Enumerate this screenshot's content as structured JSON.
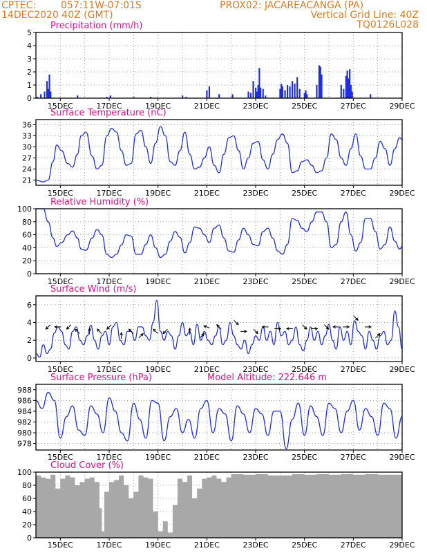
{
  "header": {
    "source": "CPTEC:",
    "coords": "057:11W-07:01S",
    "station": "PROX02: JACAREACANGA (PA)",
    "date": "14DEC2020 40Z (GMT)",
    "grid_note": "Vertical Grid Line: 40Z",
    "model_code": "TQ0126L028"
  },
  "colors": {
    "header": "#e07b20",
    "title": "#e0108a",
    "series": "#1f2fe0",
    "cloud": "#a8a8a8"
  },
  "chart_data": [
    {
      "type": "bar",
      "title": "Precipitation (mm/h)",
      "xticks": [
        "15DEC",
        "17DEC",
        "19DEC",
        "21DEC",
        "23DEC",
        "25DEC",
        "27DEC",
        "29DEC"
      ],
      "yticks": [
        "0",
        "1",
        "2",
        "3",
        "4",
        "5"
      ],
      "ylim": [
        0,
        5
      ],
      "xlim": [
        14.0,
        29.0
      ],
      "grid": true,
      "x": [
        14.05,
        14.2,
        14.35,
        14.45,
        14.5,
        14.55,
        14.6,
        15.7,
        16.9,
        17.05,
        18.0,
        18.7,
        20.0,
        20.15,
        21.0,
        21.1,
        21.5,
        22.05,
        22.7,
        22.8,
        22.9,
        23.0,
        23.05,
        23.1,
        23.15,
        23.2,
        23.3,
        23.4,
        24.0,
        24.05,
        24.1,
        24.2,
        24.3,
        24.4,
        24.5,
        24.6,
        24.7,
        24.8,
        25.0,
        25.05,
        25.1,
        25.5,
        25.6,
        25.65,
        25.7,
        26.5,
        26.6,
        26.7,
        26.75,
        26.8,
        26.85,
        26.9,
        26.95,
        27.7
      ],
      "values": [
        0.1,
        0.3,
        0.5,
        1.3,
        0.7,
        1.8,
        0.5,
        0.2,
        0.1,
        0.2,
        0.1,
        0.1,
        0.2,
        0.1,
        0.6,
        0.9,
        0.3,
        0.3,
        0.5,
        0.4,
        1.3,
        0.8,
        0.5,
        1.0,
        2.3,
        0.8,
        0.7,
        0.2,
        0.7,
        1.1,
        0.9,
        0.6,
        1.0,
        0.9,
        1.3,
        1.1,
        1.6,
        0.7,
        0.4,
        0.6,
        0.3,
        1.0,
        2.5,
        2.4,
        1.8,
        1.0,
        0.7,
        1.7,
        2.1,
        1.5,
        2.2,
        1.0,
        0.5,
        0.3
      ]
    },
    {
      "type": "line",
      "title": "Surface Temperature (nC)",
      "xticks": [
        "15DEC",
        "17DEC",
        "19DEC",
        "21DEC",
        "23DEC",
        "25DEC",
        "27DEC",
        "29DEC"
      ],
      "yticks": [
        "21",
        "24",
        "27",
        "30",
        "33",
        "36"
      ],
      "ylim": [
        19.6,
        37.4
      ],
      "xlim": [
        14.0,
        29.0
      ],
      "grid": true,
      "x": [
        14.0,
        14.3,
        14.5,
        14.7,
        14.85,
        15.05,
        15.3,
        15.5,
        15.7,
        15.85,
        16.05,
        16.3,
        16.5,
        16.7,
        16.9,
        17.1,
        17.3,
        17.5,
        17.7,
        17.9,
        18.1,
        18.3,
        18.5,
        18.7,
        18.9,
        19.1,
        19.3,
        19.5,
        19.7,
        19.9,
        20.1,
        20.3,
        20.5,
        20.7,
        20.9,
        21.1,
        21.3,
        21.5,
        21.7,
        21.9,
        22.1,
        22.3,
        22.5,
        22.7,
        22.9,
        23.1,
        23.3,
        23.5,
        23.7,
        23.9,
        24.1,
        24.3,
        24.5,
        24.7,
        24.9,
        25.1,
        25.3,
        25.5,
        25.7,
        25.9,
        26.1,
        26.3,
        26.5,
        26.7,
        26.9,
        27.1,
        27.3,
        27.5,
        27.7,
        27.9,
        28.1,
        28.3,
        28.5,
        28.7,
        28.9,
        29.0
      ],
      "values": [
        21.0,
        20.5,
        21.0,
        26.0,
        30.5,
        29.0,
        25.5,
        24.5,
        28.0,
        33.0,
        34.0,
        27.5,
        24.0,
        25.0,
        33.0,
        35.0,
        34.0,
        29.0,
        25.0,
        25.5,
        33.5,
        34.5,
        30.0,
        25.5,
        31.0,
        35.5,
        33.0,
        26.0,
        25.0,
        29.0,
        34.0,
        28.0,
        24.0,
        24.5,
        27.0,
        30.0,
        25.0,
        23.0,
        28.0,
        32.5,
        33.0,
        29.0,
        24.0,
        27.0,
        31.0,
        31.5,
        26.5,
        24.0,
        28.0,
        32.0,
        33.5,
        31.0,
        23.0,
        23.5,
        26.0,
        26.5,
        25.0,
        23.0,
        23.5,
        27.0,
        33.5,
        32.0,
        27.0,
        25.0,
        29.5,
        33.5,
        27.5,
        24.0,
        24.0,
        27.0,
        31.5,
        29.5,
        25.0,
        29.5,
        32.5,
        32.0
      ]
    },
    {
      "type": "line",
      "title": "Relative Humidity (%)",
      "xticks": [
        "15DEC",
        "17DEC",
        "19DEC",
        "21DEC",
        "23DEC",
        "25DEC",
        "27DEC",
        "29DEC"
      ],
      "yticks": [
        "0",
        "20",
        "40",
        "60",
        "80",
        "100"
      ],
      "ylim": [
        0,
        100
      ],
      "xlim": [
        14.0,
        29.0
      ],
      "grid": true,
      "x": [
        14.0,
        14.3,
        14.5,
        14.7,
        14.85,
        15.05,
        15.3,
        15.5,
        15.7,
        15.85,
        16.05,
        16.3,
        16.5,
        16.7,
        16.9,
        17.1,
        17.3,
        17.5,
        17.7,
        17.9,
        18.1,
        18.3,
        18.5,
        18.7,
        18.9,
        19.1,
        19.3,
        19.5,
        19.7,
        19.9,
        20.1,
        20.3,
        20.5,
        20.7,
        20.9,
        21.1,
        21.3,
        21.5,
        21.7,
        21.9,
        22.1,
        22.3,
        22.5,
        22.7,
        22.9,
        23.1,
        23.3,
        23.5,
        23.7,
        23.9,
        24.1,
        24.3,
        24.5,
        24.7,
        24.9,
        25.1,
        25.3,
        25.5,
        25.7,
        25.9,
        26.1,
        26.3,
        26.5,
        26.7,
        26.9,
        27.1,
        27.3,
        27.5,
        27.7,
        27.9,
        28.1,
        28.3,
        28.5,
        28.7,
        28.9,
        29.0
      ],
      "values": [
        100,
        100,
        80,
        55,
        42,
        48,
        60,
        66,
        55,
        38,
        36,
        55,
        68,
        60,
        30,
        25,
        30,
        44,
        60,
        58,
        30,
        30,
        45,
        60,
        40,
        25,
        30,
        50,
        65,
        56,
        32,
        48,
        72,
        70,
        60,
        48,
        70,
        75,
        55,
        35,
        33,
        52,
        70,
        60,
        45,
        43,
        65,
        70,
        55,
        35,
        30,
        45,
        85,
        82,
        70,
        65,
        80,
        95,
        95,
        80,
        40,
        45,
        80,
        95,
        60,
        35,
        48,
        85,
        85,
        65,
        38,
        45,
        72,
        50,
        38,
        42
      ]
    },
    {
      "type": "line",
      "title": "Surface Wind (m/s)",
      "xticks": [
        "15DEC",
        "17DEC",
        "19DEC",
        "21DEC",
        "23DEC",
        "25DEC",
        "27DEC",
        "29DEC"
      ],
      "yticks": [
        "0",
        "2",
        "4",
        "6"
      ],
      "ylim": [
        -0.4,
        7.0
      ],
      "xlim": [
        14.0,
        29.0
      ],
      "grid": true,
      "x": [
        14.0,
        14.15,
        14.3,
        14.45,
        14.6,
        14.75,
        14.9,
        15.05,
        15.2,
        15.35,
        15.5,
        15.65,
        15.8,
        15.95,
        16.1,
        16.25,
        16.4,
        16.55,
        16.7,
        16.85,
        17.0,
        17.15,
        17.3,
        17.45,
        17.6,
        17.75,
        17.9,
        18.05,
        18.2,
        18.35,
        18.5,
        18.65,
        18.8,
        18.95,
        19.1,
        19.25,
        19.4,
        19.55,
        19.7,
        19.85,
        20.0,
        20.15,
        20.3,
        20.45,
        20.6,
        20.75,
        20.9,
        21.05,
        21.2,
        21.35,
        21.5,
        21.65,
        21.8,
        21.95,
        22.1,
        22.25,
        22.4,
        22.55,
        22.7,
        22.85,
        23.0,
        23.15,
        23.3,
        23.45,
        23.6,
        23.75,
        23.9,
        24.05,
        24.2,
        24.35,
        24.5,
        24.65,
        24.8,
        24.95,
        25.1,
        25.25,
        25.4,
        25.55,
        25.7,
        25.85,
        26.0,
        26.15,
        26.3,
        26.45,
        26.6,
        26.75,
        26.9,
        27.05,
        27.2,
        27.35,
        27.5,
        27.65,
        27.8,
        27.95,
        28.1,
        28.25,
        28.4,
        28.55,
        28.7,
        28.85,
        29.0
      ],
      "values": [
        0.5,
        0.1,
        1.5,
        0.5,
        1.0,
        2.8,
        3.5,
        3.0,
        1.5,
        1.0,
        3.0,
        3.5,
        2.0,
        1.5,
        2.5,
        3.7,
        2.0,
        1.0,
        2.5,
        3.0,
        1.5,
        3.5,
        4.0,
        2.0,
        1.5,
        3.0,
        3.0,
        2.0,
        3.5,
        3.5,
        2.5,
        2.0,
        4.0,
        6.5,
        3.0,
        2.0,
        3.0,
        2.5,
        1.0,
        2.5,
        4.0,
        2.5,
        3.0,
        1.5,
        3.8,
        2.0,
        3.0,
        2.0,
        1.5,
        2.5,
        3.5,
        1.5,
        2.0,
        4.0,
        2.5,
        1.5,
        1.0,
        2.0,
        0.5,
        1.5,
        2.5,
        2.0,
        3.5,
        2.0,
        3.0,
        1.5,
        4.0,
        2.5,
        3.0,
        1.5,
        2.0,
        3.5,
        1.5,
        0.8,
        2.0,
        3.5,
        2.0,
        3.0,
        1.5,
        2.5,
        3.8,
        2.0,
        1.0,
        3.5,
        2.0,
        3.0,
        1.5,
        4.2,
        3.0,
        2.5,
        1.0,
        3.0,
        2.0,
        1.0,
        2.5,
        3.0,
        1.5,
        2.0,
        5.3,
        3.5,
        1.0
      ]
    },
    {
      "type": "line",
      "title": "Surface Pressure (hPa)",
      "annotation": "Model Altitude: 222.646 m",
      "xticks": [
        "15DEC",
        "17DEC",
        "19DEC",
        "21DEC",
        "23DEC",
        "25DEC",
        "27DEC",
        "29DEC"
      ],
      "yticks": [
        "978",
        "980",
        "982",
        "984",
        "986",
        "988"
      ],
      "ylim": [
        976.8,
        989.0
      ],
      "xlim": [
        14.0,
        29.0
      ],
      "grid": true,
      "x": [
        14.0,
        14.25,
        14.5,
        14.75,
        15.0,
        15.25,
        15.5,
        15.75,
        16.0,
        16.25,
        16.5,
        16.75,
        17.0,
        17.25,
        17.5,
        17.75,
        18.0,
        18.25,
        18.5,
        18.75,
        19.0,
        19.25,
        19.5,
        19.75,
        20.0,
        20.25,
        20.5,
        20.75,
        21.0,
        21.25,
        21.5,
        21.75,
        22.0,
        22.25,
        22.5,
        22.75,
        23.0,
        23.25,
        23.5,
        23.75,
        24.0,
        24.25,
        24.5,
        24.75,
        25.0,
        25.25,
        25.5,
        25.75,
        26.0,
        26.25,
        26.5,
        26.75,
        27.0,
        27.25,
        27.5,
        27.75,
        28.0,
        28.25,
        28.5,
        28.75,
        29.0
      ],
      "values": [
        986.0,
        984.5,
        987.5,
        986.0,
        979.0,
        983.0,
        985.0,
        980.5,
        979.5,
        985.0,
        983.5,
        980.0,
        986.5,
        984.0,
        980.0,
        978.5,
        985.5,
        982.5,
        979.0,
        986.0,
        985.5,
        978.5,
        983.0,
        984.5,
        980.0,
        982.5,
        979.0,
        984.5,
        986.0,
        980.0,
        984.5,
        983.5,
        978.5,
        985.0,
        983.5,
        980.0,
        984.5,
        983.5,
        979.5,
        984.0,
        984.0,
        977.0,
        982.5,
        985.5,
        979.5,
        985.0,
        983.0,
        979.5,
        985.5,
        984.5,
        980.0,
        984.0,
        986.0,
        980.5,
        984.5,
        983.0,
        979.5,
        985.5,
        984.5,
        979.0,
        983.0
      ]
    },
    {
      "type": "area",
      "title": "Cloud Cover (%)",
      "xticks": [
        "15DEC",
        "17DEC",
        "19DEC",
        "21DEC",
        "23DEC",
        "25DEC",
        "27DEC",
        "29DEC"
      ],
      "yticks": [
        "0",
        "20",
        "40",
        "60",
        "80",
        "100"
      ],
      "ylim": [
        0,
        100
      ],
      "xlim": [
        14.0,
        29.0
      ],
      "grid": true,
      "x": [
        14.0,
        14.2,
        14.4,
        14.6,
        14.8,
        15.0,
        15.2,
        15.4,
        15.6,
        15.8,
        16.0,
        16.2,
        16.4,
        16.6,
        16.7,
        16.8,
        17.0,
        17.2,
        17.4,
        17.6,
        17.8,
        18.0,
        18.2,
        18.4,
        18.6,
        18.8,
        19.0,
        19.2,
        19.4,
        19.6,
        19.8,
        20.0,
        20.2,
        20.4,
        20.6,
        20.8,
        21.0,
        21.2,
        21.4,
        21.6,
        21.8,
        22.0,
        22.5,
        23.0,
        23.5,
        24.0,
        24.5,
        25.0,
        25.5,
        26.0,
        26.5,
        27.0,
        27.5,
        28.0,
        28.5,
        29.0
      ],
      "values": [
        95,
        92,
        90,
        96,
        75,
        90,
        95,
        92,
        80,
        85,
        90,
        92,
        85,
        45,
        10,
        70,
        85,
        88,
        95,
        80,
        60,
        70,
        95,
        92,
        90,
        40,
        10,
        25,
        8,
        50,
        90,
        85,
        95,
        60,
        75,
        90,
        92,
        95,
        90,
        85,
        92,
        97,
        96,
        97,
        95,
        95,
        97,
        96,
        97,
        96,
        97,
        96,
        97,
        96,
        96,
        95
      ]
    }
  ],
  "wind_vectors": [
    {
      "x": 14.5,
      "y": 3.5,
      "angle": 225
    },
    {
      "x": 14.9,
      "y": 3.5,
      "angle": 180
    },
    {
      "x": 15.35,
      "y": 3.5,
      "angle": 225
    },
    {
      "x": 15.7,
      "y": 3.0,
      "angle": 135
    },
    {
      "x": 16.2,
      "y": 3.0,
      "angle": 90
    },
    {
      "x": 16.6,
      "y": 3.0,
      "angle": 135
    },
    {
      "x": 17.0,
      "y": 3.5,
      "angle": 225
    },
    {
      "x": 17.5,
      "y": 2.5,
      "angle": 90
    },
    {
      "x": 17.9,
      "y": 3.0,
      "angle": 135
    },
    {
      "x": 18.3,
      "y": 2.5,
      "angle": 45
    },
    {
      "x": 18.9,
      "y": 3.0,
      "angle": 135
    },
    {
      "x": 19.3,
      "y": 3.0,
      "angle": 225
    },
    {
      "x": 20.3,
      "y": 3.0,
      "angle": 90
    },
    {
      "x": 20.8,
      "y": 2.5,
      "angle": 45
    },
    {
      "x": 21.0,
      "y": 3.5,
      "angle": 160
    },
    {
      "x": 21.5,
      "y": 3.5,
      "angle": 135
    },
    {
      "x": 22.2,
      "y": 4.0,
      "angle": 315
    },
    {
      "x": 22.5,
      "y": 3.0,
      "angle": 0
    },
    {
      "x": 23.0,
      "y": 3.0,
      "angle": 315
    },
    {
      "x": 23.4,
      "y": 3.5,
      "angle": 180
    },
    {
      "x": 23.9,
      "y": 3.3,
      "angle": 0
    },
    {
      "x": 24.4,
      "y": 3.3,
      "angle": 180
    },
    {
      "x": 25.0,
      "y": 3.5,
      "angle": 315
    },
    {
      "x": 25.4,
      "y": 3.3,
      "angle": 0
    },
    {
      "x": 25.9,
      "y": 3.5,
      "angle": 315
    },
    {
      "x": 26.3,
      "y": 3.5,
      "angle": 180
    },
    {
      "x": 26.7,
      "y": 3.5,
      "angle": 0
    },
    {
      "x": 27.1,
      "y": 4.5,
      "angle": 315
    },
    {
      "x": 27.6,
      "y": 3.5,
      "angle": 0
    },
    {
      "x": 28.0,
      "y": 2.5,
      "angle": 45
    }
  ]
}
